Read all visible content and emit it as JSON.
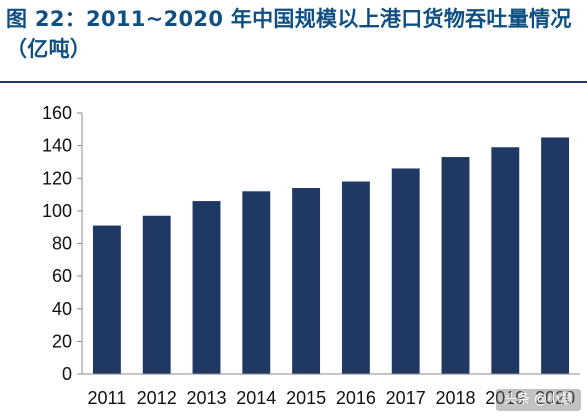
{
  "figure": {
    "title": "图 22：2011~2020 年中国规模以上港口货物吞吐量情况（亿吨）"
  },
  "watermark": "头条 @小慧",
  "colors": {
    "bar": "#1f3864",
    "title": "#0f4f82",
    "axis": "#8c8c8c",
    "divider": "#1f3a66"
  },
  "chart_data": {
    "type": "bar",
    "categories": [
      "2011",
      "2012",
      "2013",
      "2014",
      "2015",
      "2016",
      "2017",
      "2018",
      "2019",
      "2020"
    ],
    "values": [
      91,
      97,
      106,
      112,
      114,
      118,
      126,
      133,
      139,
      145
    ],
    "title": "图 22：2011~2020 年中国规模以上港口货物吞吐量情况（亿吨）",
    "xlabel": "",
    "ylabel": "",
    "ylim": [
      0,
      160
    ],
    "yticks": [
      0,
      20,
      40,
      60,
      80,
      100,
      120,
      140,
      160
    ],
    "grid": false,
    "legend": "none"
  }
}
